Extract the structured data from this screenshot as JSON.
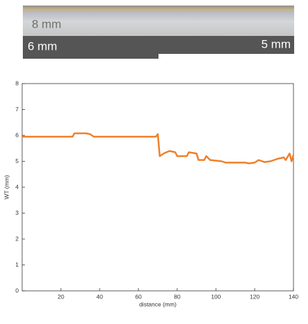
{
  "photo": {
    "labels": [
      "8 mm",
      "6 mm",
      "5 mm"
    ]
  },
  "chart_data": {
    "type": "line",
    "xlabel": "distance (mm)",
    "ylabel": "WT (mm)",
    "xlim": [
      0,
      140
    ],
    "ylim": [
      0,
      8
    ],
    "xticks": [
      20,
      40,
      60,
      80,
      100,
      120,
      140
    ],
    "yticks": [
      0,
      1,
      2,
      3,
      4,
      5,
      6,
      7,
      8
    ],
    "grid": false,
    "x": [
      0,
      26,
      27,
      33,
      35,
      37,
      69,
      70,
      71,
      73,
      76,
      79,
      80,
      85,
      86,
      90,
      91,
      94,
      95,
      97,
      103,
      105,
      115,
      117,
      120,
      122,
      125,
      128,
      132,
      135,
      136,
      138,
      139,
      140
    ],
    "series": [
      {
        "color": "#f07f2a",
        "values": [
          5.95,
          5.95,
          6.08,
          6.08,
          6.05,
          5.95,
          5.95,
          6.05,
          5.2,
          5.3,
          5.4,
          5.35,
          5.2,
          5.2,
          5.35,
          5.3,
          5.05,
          5.05,
          5.2,
          5.05,
          5.0,
          4.95,
          4.95,
          4.92,
          4.95,
          5.05,
          4.97,
          5.0,
          5.1,
          5.15,
          5.05,
          5.3,
          5.0,
          5.25
        ]
      }
    ]
  }
}
